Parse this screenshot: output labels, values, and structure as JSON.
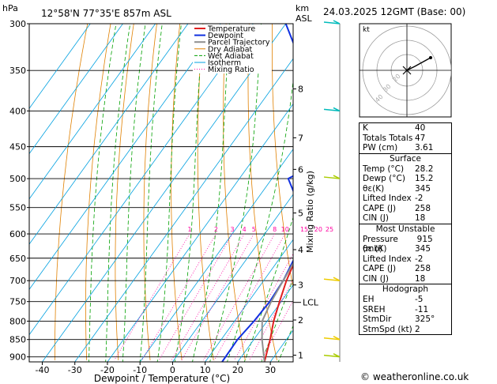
{
  "header": {
    "pressure_unit": "hPa",
    "location": "12°58'N  77°35'E  857m  ASL",
    "height_unit_1": "km",
    "height_unit_2": "ASL",
    "datetime": "24.03.2025  12GMT  (Base: 00)"
  },
  "chart_data": {
    "type": "line",
    "title": "",
    "xlabel": "Dewpoint / Temperature (°C)",
    "ylabel": "hPa",
    "secondary_ylabel": "Mixing Ratio (g/kg)",
    "x_range": [
      -40,
      36
    ],
    "x_ticks": [
      -40,
      -30,
      -20,
      -10,
      0,
      10,
      20,
      30
    ],
    "y_range": [
      300,
      915
    ],
    "y_scale": "log",
    "pressure_levels": [
      300,
      350,
      400,
      450,
      500,
      550,
      600,
      650,
      700,
      750,
      800,
      850,
      900
    ],
    "height_km_ticks": [
      {
        "label": "8",
        "p": 372
      },
      {
        "label": "7",
        "p": 437
      },
      {
        "label": "6",
        "p": 485
      },
      {
        "label": "5",
        "p": 560
      },
      {
        "label": "4",
        "p": 632
      },
      {
        "label": "3",
        "p": 710
      },
      {
        "label": "2",
        "p": 797
      },
      {
        "label": "1",
        "p": 895
      }
    ],
    "lcl": {
      "label": "LCL",
      "p": 752
    },
    "mixing_ratio_labels": [
      "1",
      "2",
      "3",
      "4",
      "5",
      "8",
      "10",
      "15",
      "20",
      "25"
    ],
    "legend": [
      "Temperature",
      "Dewpoint",
      "Parcel Trajectory",
      "Dry Adiabat",
      "Wet Adiabat",
      "Isotherm",
      "Mixing Ratio"
    ],
    "legend_position": "top-left",
    "colors": {
      "temperature": "#e02020",
      "dewpoint": "#1030e0",
      "parcel": "#909090",
      "dry_adiabat": "#e08000",
      "wet_adiabat": "#00a000",
      "isotherm": "#00a0e0",
      "mixing_ratio": "#ff00a0"
    },
    "series": [
      {
        "name": "Temperature",
        "points": [
          [
            28.2,
            915
          ],
          [
            25,
            850
          ],
          [
            22,
            800
          ],
          [
            19.5,
            750
          ],
          [
            17,
            700
          ],
          [
            15,
            650
          ],
          [
            12.5,
            600
          ],
          [
            10.5,
            550
          ],
          [
            8.5,
            500
          ],
          [
            6,
            450
          ],
          [
            2.5,
            400
          ],
          [
            -1,
            350
          ],
          [
            -5,
            300
          ]
        ]
      },
      {
        "name": "Dewpoint",
        "points": [
          [
            15.2,
            915
          ],
          [
            15,
            850
          ],
          [
            16,
            800
          ],
          [
            16.5,
            750
          ],
          [
            16,
            700
          ],
          [
            14.5,
            650
          ],
          [
            11,
            600
          ],
          [
            5,
            550
          ],
          [
            -5,
            500
          ],
          [
            6,
            450
          ],
          [
            -8,
            400
          ],
          [
            -24,
            350
          ],
          [
            -40,
            300
          ]
        ]
      },
      {
        "name": "Parcel Trajectory",
        "points": [
          [
            28.2,
            915
          ],
          [
            22.5,
            850
          ],
          [
            18.5,
            800
          ],
          [
            17,
            752
          ],
          [
            16,
            700
          ],
          [
            15,
            650
          ],
          [
            14,
            600
          ],
          [
            12.5,
            550
          ],
          [
            10.5,
            500
          ],
          [
            8,
            450
          ],
          [
            4.5,
            400
          ],
          [
            0,
            350
          ],
          [
            -5,
            300
          ]
        ]
      }
    ]
  },
  "hodograph": {
    "label": "kt",
    "ring_labels": [
      "40",
      "30",
      "20"
    ],
    "arrow_color": "#000000"
  },
  "indices": {
    "general": [
      {
        "label": "K",
        "value": "40"
      },
      {
        "label": "Totals Totals",
        "value": "47"
      },
      {
        "label": "PW (cm)",
        "value": "3.61"
      }
    ],
    "surface_title": "Surface",
    "surface": [
      {
        "label": "Temp (°C)",
        "value": "28.2"
      },
      {
        "label": "Dewp (°C)",
        "value": "15.2"
      },
      {
        "label": "θε(K)",
        "value": "345"
      },
      {
        "label": "Lifted Index",
        "value": "-2"
      },
      {
        "label": "CAPE (J)",
        "value": "258"
      },
      {
        "label": "CIN (J)",
        "value": "18"
      }
    ],
    "unstable_title": "Most Unstable",
    "unstable": [
      {
        "label": "Pressure (mb)",
        "value": "915"
      },
      {
        "label": "θε (K)",
        "value": "345"
      },
      {
        "label": "Lifted Index",
        "value": "-2"
      },
      {
        "label": "CAPE (J)",
        "value": "258"
      },
      {
        "label": "CIN (J)",
        "value": "18"
      }
    ],
    "hodograph_title": "Hodograph",
    "hodo_params": [
      {
        "label": "EH",
        "value": "-5"
      },
      {
        "label": "SREH",
        "value": "-11"
      },
      {
        "label": "StmDir",
        "value": "325°"
      },
      {
        "label": "StmSpd (kt)",
        "value": "2"
      }
    ]
  },
  "footer": {
    "site": "© weatheronline.co.uk"
  }
}
